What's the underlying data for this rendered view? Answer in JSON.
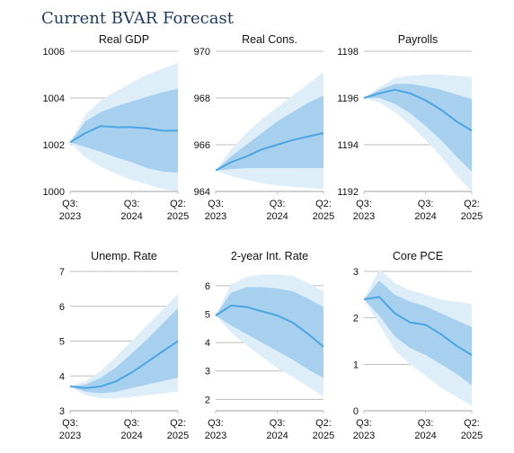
{
  "figure_title": "Current BVAR Forecast",
  "colors": {
    "title": "#1f3a5f",
    "outer_band": "#deeef9",
    "inner_band": "#a7d0ee",
    "line": "#4aa5e2",
    "grid": "#bdbdbd",
    "axis": "#c0c0c0"
  },
  "chart_data": [
    {
      "type": "area",
      "title": "Real GDP",
      "xticks": [
        {
          "x": 0,
          "l1": "Q3:",
          "l2": "2023"
        },
        {
          "x": 4,
          "l1": "Q3:",
          "l2": "2024"
        },
        {
          "x": 7,
          "l1": "Q2:",
          "l2": "2025"
        }
      ],
      "yticks": [
        "1000",
        "1002",
        "1004",
        "1006"
      ],
      "ylim": [
        1000,
        1006
      ],
      "x": [
        0,
        1,
        2,
        3,
        4,
        5,
        6,
        7
      ],
      "median": [
        1002.1,
        1002.5,
        1002.8,
        1002.75,
        1002.75,
        1002.7,
        1002.6,
        1002.6
      ],
      "inner_low": [
        1002.1,
        1001.9,
        1001.7,
        1001.45,
        1001.25,
        1001.0,
        1000.85,
        1000.8
      ],
      "inner_high": [
        1002.1,
        1003.0,
        1003.4,
        1003.65,
        1003.85,
        1004.05,
        1004.25,
        1004.4
      ],
      "outer_low": [
        1002.1,
        1001.45,
        1001.05,
        1000.75,
        1000.5,
        1000.3,
        1000.1,
        1000.0
      ],
      "outer_high": [
        1002.1,
        1003.3,
        1003.9,
        1004.3,
        1004.65,
        1005.0,
        1005.25,
        1005.5
      ]
    },
    {
      "type": "area",
      "title": "Real Cons.",
      "xticks": [
        {
          "x": 0,
          "l1": "Q3:",
          "l2": "2023"
        },
        {
          "x": 4,
          "l1": "Q3:",
          "l2": "2024"
        },
        {
          "x": 7,
          "l1": "Q2:",
          "l2": "2025"
        }
      ],
      "yticks": [
        "964",
        "966",
        "968",
        "970"
      ],
      "ylim": [
        964,
        970
      ],
      "x": [
        0,
        1,
        2,
        3,
        4,
        5,
        6,
        7
      ],
      "median": [
        964.9,
        965.25,
        965.5,
        965.8,
        966.0,
        966.2,
        966.35,
        966.5
      ],
      "inner_low": [
        964.9,
        964.95,
        965.0,
        965.0,
        965.0,
        965.0,
        965.0,
        965.0
      ],
      "inner_high": [
        964.9,
        965.5,
        966.0,
        966.5,
        967.0,
        967.4,
        967.8,
        968.1
      ],
      "outer_low": [
        964.9,
        964.65,
        964.5,
        964.35,
        964.25,
        964.2,
        964.15,
        964.1
      ],
      "outer_high": [
        964.9,
        965.8,
        966.5,
        967.1,
        967.6,
        968.1,
        968.6,
        969.1
      ]
    },
    {
      "type": "area",
      "title": "Payrolls",
      "xticks": [
        {
          "x": 0,
          "l1": "Q3:",
          "l2": "2023"
        },
        {
          "x": 4,
          "l1": "Q3:",
          "l2": "2024"
        },
        {
          "x": 7,
          "l1": "Q2:",
          "l2": "2025"
        }
      ],
      "yticks": [
        "1192",
        "1194",
        "1196",
        "1198"
      ],
      "ylim": [
        1192,
        1198
      ],
      "x": [
        0,
        1,
        2,
        3,
        4,
        5,
        6,
        7
      ],
      "median": [
        1196.0,
        1196.2,
        1196.35,
        1196.2,
        1195.9,
        1195.5,
        1195.0,
        1194.6
      ],
      "inner_low": [
        1196.0,
        1196.0,
        1195.75,
        1195.35,
        1194.8,
        1194.2,
        1193.5,
        1192.85
      ],
      "inner_high": [
        1196.0,
        1196.35,
        1196.6,
        1196.6,
        1196.5,
        1196.35,
        1196.15,
        1195.95
      ],
      "outer_low": [
        1196.0,
        1195.8,
        1195.4,
        1194.85,
        1194.2,
        1193.5,
        1192.7,
        1192.0
      ],
      "outer_high": [
        1196.0,
        1196.45,
        1196.85,
        1196.95,
        1197.0,
        1197.0,
        1196.95,
        1196.9
      ]
    },
    {
      "type": "area",
      "title": "Unemp. Rate",
      "xticks": [
        {
          "x": 0,
          "l1": "Q3:",
          "l2": "2023"
        },
        {
          "x": 4,
          "l1": "Q3:",
          "l2": "2024"
        },
        {
          "x": 7,
          "l1": "Q2:",
          "l2": "2025"
        }
      ],
      "yticks": [
        "3",
        "4",
        "5",
        "6",
        "7"
      ],
      "ylim": [
        3,
        7
      ],
      "x": [
        0,
        1,
        2,
        3,
        4,
        5,
        6,
        7
      ],
      "median": [
        3.7,
        3.65,
        3.7,
        3.85,
        4.1,
        4.4,
        4.7,
        5.0
      ],
      "inner_low": [
        3.7,
        3.55,
        3.5,
        3.55,
        3.65,
        3.75,
        3.85,
        3.95
      ],
      "inner_high": [
        3.7,
        3.75,
        3.95,
        4.25,
        4.65,
        5.05,
        5.5,
        5.95
      ],
      "outer_low": [
        3.7,
        3.45,
        3.35,
        3.35,
        3.4,
        3.45,
        3.5,
        3.55
      ],
      "outer_high": [
        3.7,
        3.85,
        4.15,
        4.55,
        5.0,
        5.45,
        5.9,
        6.35
      ]
    },
    {
      "type": "area",
      "title": "2-year Int. Rate",
      "xticks": [
        {
          "x": 0,
          "l1": "Q3:",
          "l2": "2023"
        },
        {
          "x": 4,
          "l1": "Q3:",
          "l2": "2024"
        },
        {
          "x": 7,
          "l1": "Q2:",
          "l2": "2025"
        }
      ],
      "yticks": [
        "2",
        "3",
        "4",
        "5",
        "6"
      ],
      "ylim": [
        1.6,
        6.5
      ],
      "x": [
        0,
        1,
        2,
        3,
        4,
        5,
        6,
        7
      ],
      "median": [
        4.95,
        5.3,
        5.25,
        5.1,
        4.95,
        4.7,
        4.3,
        3.85
      ],
      "inner_low": [
        4.95,
        4.6,
        4.3,
        4.0,
        3.7,
        3.4,
        3.05,
        2.75
      ],
      "inner_high": [
        4.95,
        5.75,
        5.95,
        5.95,
        5.9,
        5.8,
        5.55,
        5.25
      ],
      "outer_low": [
        4.95,
        4.35,
        3.9,
        3.5,
        3.1,
        2.8,
        2.45,
        2.1
      ],
      "outer_high": [
        4.95,
        6.05,
        6.3,
        6.4,
        6.4,
        6.35,
        6.1,
        5.8
      ]
    },
    {
      "type": "area",
      "title": "Core PCE",
      "xticks": [
        {
          "x": 0,
          "l1": "Q3:",
          "l2": "2023"
        },
        {
          "x": 4,
          "l1": "Q3:",
          "l2": "2024"
        },
        {
          "x": 7,
          "l1": "Q2:",
          "l2": "2025"
        }
      ],
      "yticks": [
        "0",
        "1",
        "2",
        "3"
      ],
      "ylim": [
        0,
        3
      ],
      "x": [
        0,
        1,
        2,
        3,
        4,
        5,
        6,
        7
      ],
      "median": [
        2.4,
        2.45,
        2.1,
        1.9,
        1.85,
        1.65,
        1.4,
        1.2
      ],
      "inner_low": [
        2.4,
        2.05,
        1.6,
        1.35,
        1.2,
        1.0,
        0.8,
        0.55
      ],
      "inner_high": [
        2.4,
        2.8,
        2.5,
        2.35,
        2.25,
        2.1,
        1.95,
        1.8
      ],
      "outer_low": [
        2.4,
        1.85,
        1.3,
        1.0,
        0.75,
        0.5,
        0.3,
        0.1
      ],
      "outer_high": [
        2.4,
        3.05,
        2.75,
        2.6,
        2.5,
        2.4,
        2.35,
        2.3
      ]
    }
  ]
}
